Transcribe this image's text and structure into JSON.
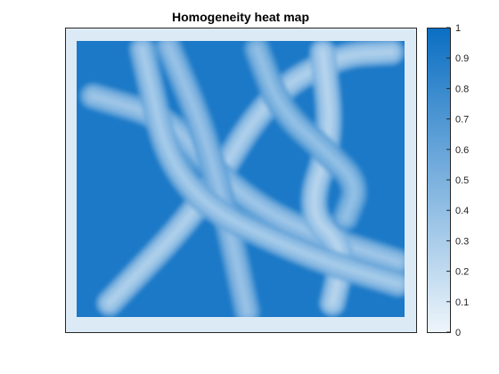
{
  "chart_data": {
    "type": "heatmap",
    "title": "Homogeneity heat map",
    "xlabel": "",
    "ylabel": "",
    "colorbar": {
      "range": [
        0,
        1
      ],
      "ticks": [
        "0",
        "0.1",
        "0.2",
        "0.3",
        "0.4",
        "0.5",
        "0.6",
        "0.7",
        "0.8",
        "0.9",
        "1"
      ],
      "colormap": [
        "#eef5fb",
        "#0a6ec2"
      ]
    },
    "image": {
      "background_value": 0.92,
      "border_value": 0.08,
      "bands": [
        {
          "value": 0.38,
          "points": [
            [
              0.1,
              0.95
            ],
            [
              0.38,
              0.6
            ],
            [
              0.58,
              0.2
            ],
            [
              0.8,
              0.05
            ],
            [
              0.96,
              0.04
            ]
          ]
        },
        {
          "value": 0.45,
          "points": [
            [
              0.05,
              0.2
            ],
            [
              0.28,
              0.28
            ],
            [
              0.4,
              0.45
            ],
            [
              0.55,
              0.6
            ],
            [
              0.72,
              0.7
            ],
            [
              0.98,
              0.8
            ]
          ]
        },
        {
          "value": 0.48,
          "points": [
            [
              0.28,
              0.02
            ],
            [
              0.38,
              0.3
            ],
            [
              0.45,
              0.6
            ],
            [
              0.52,
              0.98
            ]
          ]
        },
        {
          "value": 0.35,
          "points": [
            [
              0.75,
              0.04
            ],
            [
              0.78,
              0.35
            ],
            [
              0.7,
              0.62
            ],
            [
              0.82,
              0.75
            ],
            [
              0.78,
              0.95
            ]
          ]
        },
        {
          "value": 0.5,
          "points": [
            [
              0.55,
              0.03
            ],
            [
              0.62,
              0.25
            ],
            [
              0.76,
              0.4
            ],
            [
              0.86,
              0.52
            ],
            [
              0.82,
              0.64
            ]
          ]
        },
        {
          "value": 0.42,
          "points": [
            [
              0.2,
              0.03
            ],
            [
              0.3,
              0.55
            ],
            [
              0.7,
              0.78
            ],
            [
              0.98,
              0.88
            ]
          ]
        }
      ]
    }
  }
}
